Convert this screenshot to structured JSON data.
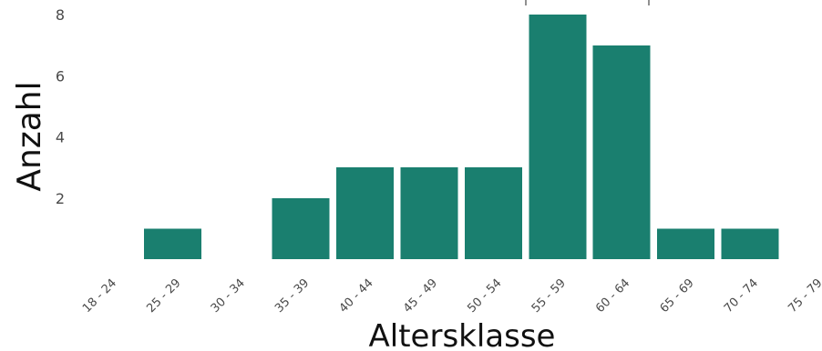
{
  "chart_data": {
    "type": "bar",
    "categories": [
      "18 - 24",
      "25 - 29",
      "30 - 34",
      "35 - 39",
      "40 - 44",
      "45 - 49",
      "50 - 54",
      "55 - 59",
      "60 - 64",
      "65 - 69",
      "70 - 74",
      "75 - 79"
    ],
    "values": [
      0,
      1,
      0,
      2,
      3,
      3,
      3,
      8,
      7,
      1,
      1,
      0
    ],
    "xlabel": "Altersklasse",
    "ylabel": "Anzahl",
    "ylim": [
      0,
      8
    ],
    "yticks": [
      2,
      4,
      6,
      8
    ],
    "grid": false,
    "bar_color": "#1a7f6f"
  }
}
